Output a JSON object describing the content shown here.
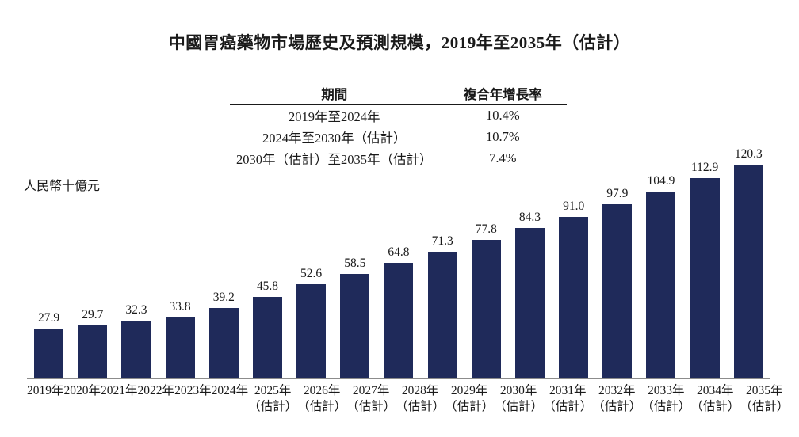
{
  "title": "中國胃癌藥物市場歷史及預測規模，2019年至2035年（估計）",
  "y_axis_label": "人民幣十億元",
  "table": {
    "headers": [
      "期間",
      "複合年增長率"
    ],
    "rows": [
      {
        "period": "2019年至2024年",
        "cagr": "10.4%"
      },
      {
        "period": "2024年至2030年（估計）",
        "cagr": "10.7%"
      },
      {
        "period": "2030年（估計）至2035年（估計）",
        "cagr": "7.4%"
      }
    ]
  },
  "chart_data": {
    "type": "bar",
    "title": "中國胃癌藥物市場歷史及預測規模，2019年至2035年（估計）",
    "ylabel": "人民幣十億元",
    "categories": [
      "2019年",
      "2020年",
      "2021年",
      "2022年",
      "2023年",
      "2024年",
      "2025年（估計）",
      "2026年（估計）",
      "2027年（估計）",
      "2028年（估計）",
      "2029年（估計）",
      "2030年（估計）",
      "2031年（估計）",
      "2032年（估計）",
      "2033年（估計）",
      "2034年（估計）",
      "2035年（估計）"
    ],
    "values": [
      27.9,
      29.7,
      32.3,
      33.8,
      39.2,
      45.8,
      52.6,
      58.5,
      64.8,
      71.3,
      77.8,
      84.3,
      91.0,
      97.9,
      104.9,
      112.9,
      120.3
    ],
    "estimate_note": "（估計）",
    "ylim": [
      0,
      125
    ],
    "grid": false,
    "legend_position": "none"
  },
  "colors": {
    "bar": "#1f2a5a",
    "axis_line": "#8c8c8c",
    "text": "#1a1a1a"
  }
}
